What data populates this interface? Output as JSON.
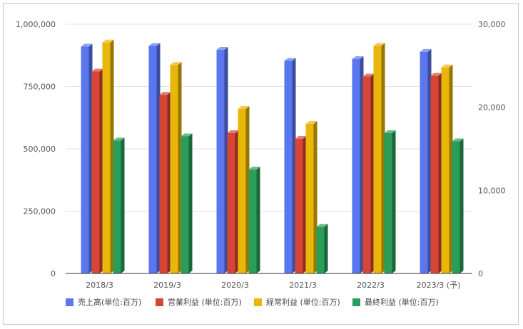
{
  "chart_data": {
    "type": "bar",
    "categories": [
      "2018/3",
      "2019/3",
      "2020/3",
      "2021/3",
      "2022/3",
      "2023/3 (予)"
    ],
    "series": [
      {
        "name": "売上高(単位:百万)",
        "axis": "left",
        "color": "#5b77f0",
        "values": [
          910000,
          913000,
          897000,
          853000,
          860000,
          889000
        ]
      },
      {
        "name": "営業利益 (単位:百万)",
        "axis": "right",
        "color": "#d64536",
        "values": [
          24300,
          21500,
          16900,
          16200,
          23700,
          23800
        ]
      },
      {
        "name": "経常利益 (単位:百万)",
        "axis": "right",
        "color": "#e9b60a",
        "values": [
          27800,
          25100,
          19800,
          18000,
          27400,
          24800
        ]
      },
      {
        "name": "最終利益 (単位:百万)",
        "axis": "right",
        "color": "#2a9e58",
        "values": [
          16000,
          16500,
          12500,
          5600,
          16900,
          15900
        ]
      }
    ],
    "y_left": {
      "range": [
        0,
        1000000
      ],
      "ticks": [
        "0",
        "250,000",
        "500,000",
        "750,000",
        "1,000,000"
      ]
    },
    "y_right": {
      "range": [
        0,
        30000
      ],
      "ticks": [
        "0",
        "10,000",
        "20,000",
        "30,000"
      ]
    },
    "grid": true,
    "legend": "bottom",
    "three_d": true
  }
}
